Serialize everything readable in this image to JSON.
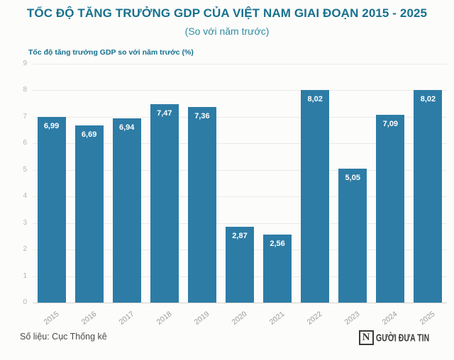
{
  "header": {
    "title": "TỐC ĐỘ TĂNG TRƯỞNG GDP CỦA VIỆT NAM GIAI ĐOẠN 2015 - 2025",
    "subtitle": "(So với năm trước)"
  },
  "chart_data": {
    "type": "bar",
    "title": "Tốc độ tăng trưởng GDP so với năm trước (%)",
    "categories": [
      "2015",
      "2016",
      "2017",
      "2018",
      "2019",
      "2020",
      "2021",
      "2022",
      "2023",
      "2024",
      "2025"
    ],
    "values": [
      6.99,
      6.69,
      6.94,
      7.47,
      7.36,
      2.87,
      2.56,
      8.02,
      5.05,
      7.09,
      8.02
    ],
    "value_labels": [
      "6,99",
      "6,69",
      "6,94",
      "7,47",
      "7,36",
      "2,87",
      "2,56",
      "8,02",
      "5,05",
      "7,09",
      "8,02"
    ],
    "ylim": [
      0,
      9
    ],
    "yticks": [
      "0",
      "1",
      "2",
      "3",
      "4",
      "5",
      "6",
      "7",
      "8",
      "9"
    ],
    "grid": true,
    "legend": "none",
    "bar_color": "#2d7ca6",
    "value_label_color": "#ffffff"
  },
  "footer": {
    "source": "Số liệu: Cục Thống kê",
    "logo_n": "N",
    "logo_text": "GƯỜI ĐƯA TIN"
  },
  "colors": {
    "title": "#17718f",
    "subtitle": "#2f8ba3",
    "axis_title": "#17718f",
    "tick_label": "#b4b4b2",
    "gridline": "#eaeae7",
    "background": "#fcfcfa",
    "source_text": "#4a4a4a"
  }
}
